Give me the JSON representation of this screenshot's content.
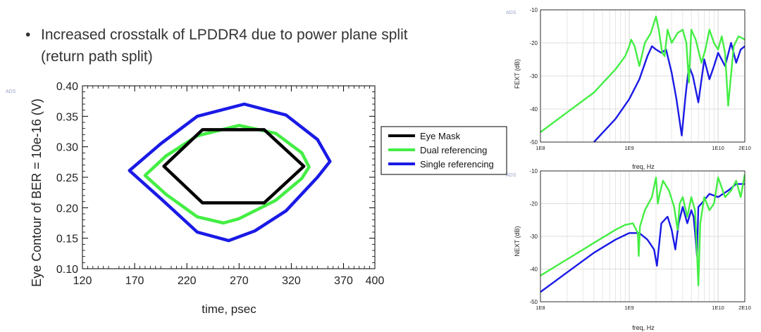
{
  "slide": {
    "bullet_line1": "Increased crosstalk of LPDDR4 due to power plane split",
    "bullet_line2": "(return path split)"
  },
  "chart_data": [
    {
      "type": "line",
      "ads_label": "ADS",
      "xlabel": "time, psec",
      "ylabel": "Eye Contour of BER = 10e-16 (V)",
      "xlim": [
        120,
        400
      ],
      "ylim": [
        0.1,
        0.4
      ],
      "xticks": [
        120,
        170,
        220,
        270,
        320,
        370,
        400
      ],
      "yticks": [
        "0.10",
        "0.15",
        "0.20",
        "0.25",
        "0.30",
        "0.35",
        "0.40"
      ],
      "legend_position": "right",
      "series": [
        {
          "name": "Eye Mask",
          "color": "#000000",
          "closed": true,
          "x": [
            198,
            235,
            294,
            332,
            294,
            235
          ],
          "y": [
            0.268,
            0.328,
            0.328,
            0.268,
            0.208,
            0.208
          ]
        },
        {
          "name": "Dual referencing",
          "color": "#44ee44",
          "closed": true,
          "x": [
            180,
            200,
            230,
            270,
            305,
            330,
            337,
            330,
            305,
            270,
            255,
            230,
            200
          ],
          "y": [
            0.253,
            0.285,
            0.318,
            0.335,
            0.322,
            0.29,
            0.267,
            0.248,
            0.212,
            0.182,
            0.175,
            0.185,
            0.222
          ]
        },
        {
          "name": "Single referencing",
          "color": "#1a1ae6",
          "closed": true,
          "x": [
            165,
            195,
            230,
            275,
            315,
            345,
            357,
            345,
            315,
            285,
            260,
            230,
            195
          ],
          "y": [
            0.261,
            0.305,
            0.35,
            0.37,
            0.352,
            0.312,
            0.276,
            0.25,
            0.195,
            0.162,
            0.146,
            0.16,
            0.215
          ]
        }
      ]
    },
    {
      "type": "line",
      "ads_label": "ADS",
      "xlabel": "freq, Hz",
      "ylabel": "FEXT (dB)",
      "xscale": "log",
      "xlim": [
        100000000,
        20000000000
      ],
      "ylim": [
        -50,
        -10
      ],
      "xticks": [
        {
          "v": 100000000,
          "label": "1E8"
        },
        {
          "v": 1000000000,
          "label": "1E9"
        },
        {
          "v": 10000000000,
          "label": "1E10"
        },
        {
          "v": 20000000000,
          "label": "2E10"
        }
      ],
      "yticks": [
        -50,
        -40,
        -30,
        -20,
        -10
      ],
      "series": [
        {
          "name": "Dual referencing",
          "color": "#44ee44",
          "x": [
            100000000.0,
            200000000.0,
            400000000.0,
            700000000.0,
            900000000.0,
            1000000000.0,
            1050000000.0,
            1150000000.0,
            1300000000.0,
            1500000000.0,
            1750000000.0,
            2000000000.0,
            2150000000.0,
            2350000000.0,
            2500000000.0,
            2700000000.0,
            3000000000.0,
            3500000000.0,
            4000000000.0,
            4400000000.0,
            4700000000.0,
            5000000000.0,
            5600000000.0,
            6500000000.0,
            7200000000.0,
            8000000000.0,
            9000000000.0,
            10000000000.0,
            11000000000.0,
            12000000000.0,
            13000000000.0,
            15000000000.0,
            17000000000.0,
            20000000000.0
          ],
          "y": [
            -47,
            -41,
            -35,
            -28,
            -24,
            -21,
            -19,
            -21,
            -27,
            -20,
            -17,
            -12,
            -16,
            -23,
            -24,
            -16,
            -20,
            -17,
            -16,
            -20,
            -32,
            -16,
            -19,
            -26,
            -22,
            -16,
            -20,
            -22,
            -18,
            -23,
            -39,
            -21,
            -18,
            -19
          ]
        },
        {
          "name": "Single referencing",
          "color": "#1a1ae6",
          "x": [
            400000000.0,
            700000000.0,
            1000000000.0,
            1300000000.0,
            1600000000.0,
            1800000000.0,
            2000000000.0,
            2300000000.0,
            2600000000.0,
            3000000000.0,
            3400000000.0,
            3900000000.0,
            4300000000.0,
            4700000000.0,
            5200000000.0,
            6000000000.0,
            7000000000.0,
            8000000000.0,
            9000000000.0,
            10000000000.0,
            12000000000.0,
            14000000000.0,
            16000000000.0,
            18000000000.0,
            20000000000.0
          ],
          "y": [
            -50,
            -43,
            -37,
            -31,
            -24,
            -21,
            -22,
            -23,
            -22,
            -29,
            -37,
            -48,
            -36,
            -27,
            -30,
            -38,
            -25,
            -31,
            -27,
            -23,
            -27,
            -20,
            -26,
            -22,
            -21
          ]
        }
      ]
    },
    {
      "type": "line",
      "ads_label": "ADS",
      "xlabel": "freq, Hz",
      "ylabel": "NEXT (dB)",
      "xscale": "log",
      "xlim": [
        100000000,
        20000000000
      ],
      "ylim": [
        -50,
        -10
      ],
      "xticks": [
        {
          "v": 100000000,
          "label": "1E8"
        },
        {
          "v": 1000000000,
          "label": "1E9"
        },
        {
          "v": 10000000000,
          "label": "1E10"
        },
        {
          "v": 20000000000,
          "label": "2E10"
        }
      ],
      "yticks": [
        -50,
        -40,
        -30,
        -20,
        -10
      ],
      "series": [
        {
          "name": "Dual referencing",
          "color": "#44ee44",
          "x": [
            100000000.0,
            200000000.0,
            400000000.0,
            700000000.0,
            900000000.0,
            1100000000.0,
            1250000000.0,
            1280000000.0,
            1320000000.0,
            1500000000.0,
            1800000000.0,
            2000000000.0,
            2100000000.0,
            2200000000.0,
            2400000000.0,
            2800000000.0,
            3200000000.0,
            3500000000.0,
            3700000000.0,
            4000000000.0,
            4500000000.0,
            5000000000.0,
            5500000000.0,
            5800000000.0,
            6000000000.0,
            6300000000.0,
            7000000000.0,
            8000000000.0,
            9000000000.0,
            10000000000.0,
            12000000000.0,
            14000000000.0,
            16000000000.0,
            18000000000.0,
            20000000000.0
          ],
          "y": [
            -42,
            -37,
            -32,
            -28,
            -26.5,
            -26,
            -29,
            -36,
            -27,
            -22,
            -18,
            -12,
            -20,
            -17,
            -13,
            -16,
            -21,
            -28,
            -20,
            -18,
            -24,
            -18,
            -22,
            -35,
            -45,
            -26,
            -18,
            -22,
            -20,
            -12,
            -18,
            -16,
            -13,
            -18,
            -11
          ]
        },
        {
          "name": "Single referencing",
          "color": "#1a1ae6",
          "x": [
            100000000.0,
            200000000.0,
            400000000.0,
            700000000.0,
            1000000000.0,
            1300000000.0,
            1600000000.0,
            1900000000.0,
            2050000000.0,
            2300000000.0,
            2700000000.0,
            3000000000.0,
            3300000000.0,
            3600000000.0,
            4000000000.0,
            4500000000.0,
            5000000000.0,
            5300000000.0,
            5600000000.0,
            5800000000.0,
            6000000000.0,
            6500000000.0,
            8000000000.0,
            10000000000.0,
            13000000000.0,
            16000000000.0,
            20000000000.0
          ],
          "y": [
            -47,
            -41,
            -35,
            -31,
            -29,
            -29,
            -31,
            -34,
            -39,
            -26,
            -24,
            -28,
            -34,
            -26,
            -21,
            -26,
            -22,
            -24,
            -31,
            -36,
            -21,
            -20,
            -17,
            -18,
            -16,
            -14,
            -14
          ]
        }
      ]
    }
  ]
}
